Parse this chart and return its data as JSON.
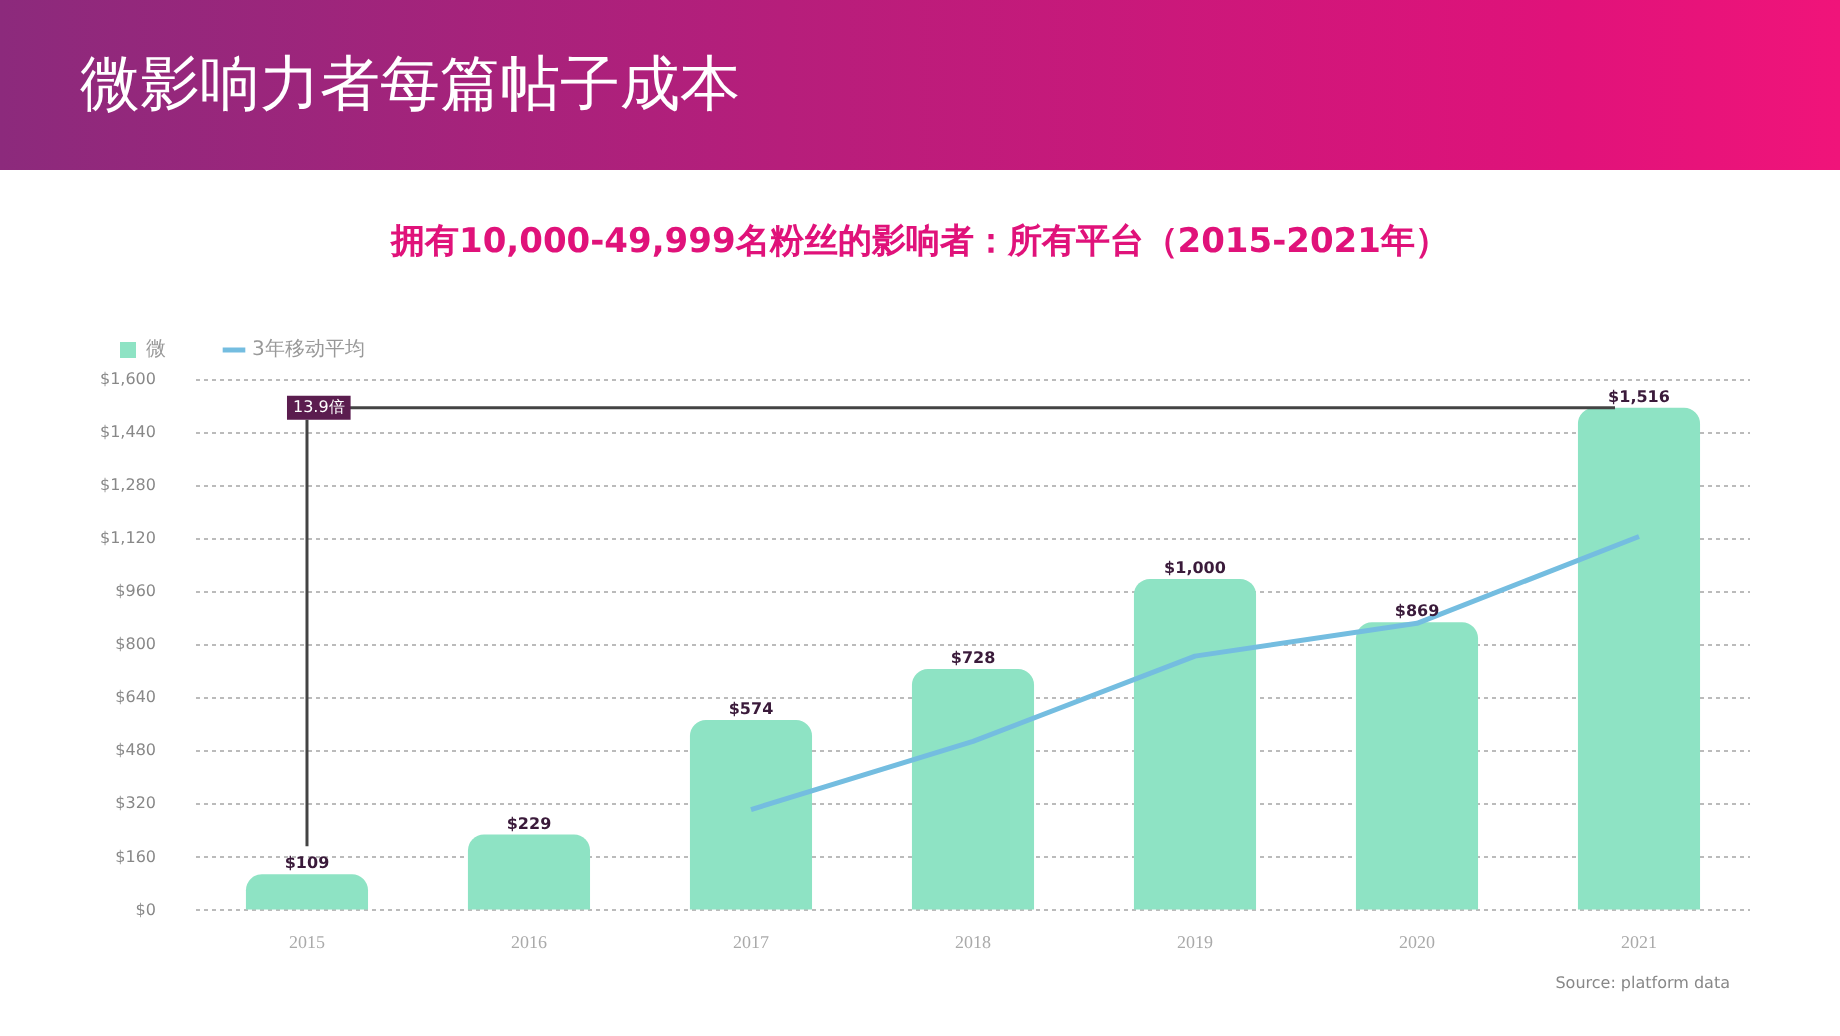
{
  "chart_data": {
    "type": "bar",
    "title": "微影响力者每篇帖子成本",
    "subtitle": "拥有10,000-49,999名粉丝的影响者：所有平台（2015-2021年）",
    "categories": [
      "2015",
      "2016",
      "2017",
      "2018",
      "2019",
      "2020",
      "2021"
    ],
    "series": [
      {
        "name": "微",
        "color": "#8ee3c4",
        "values": [
          109,
          229,
          574,
          728,
          1000,
          869,
          1516
        ],
        "value_labels": [
          "$109",
          "$229",
          "$574",
          "$728",
          "$1,000",
          "$869",
          "$1,516"
        ]
      },
      {
        "name": "3年移动平均",
        "type": "line",
        "color": "#74bde0",
        "values": [
          null,
          null,
          304,
          510,
          767,
          866,
          1128
        ]
      }
    ],
    "ylim": [
      0,
      1600
    ],
    "yticks": [
      {
        "value": 0,
        "label": "$0"
      },
      {
        "value": 160,
        "label": "$160"
      },
      {
        "value": 320,
        "label": "$320"
      },
      {
        "value": 480,
        "label": "$480"
      },
      {
        "value": 640,
        "label": "$640"
      },
      {
        "value": 800,
        "label": "$800"
      },
      {
        "value": 960,
        "label": "$960"
      },
      {
        "value": 1120,
        "label": "$1,120"
      },
      {
        "value": 1280,
        "label": "$1,280"
      },
      {
        "value": 1440,
        "label": "$1,440"
      },
      {
        "value": 1600,
        "label": "$1,600"
      }
    ],
    "grid": "y",
    "legend": "top left",
    "marker": "none",
    "line_style": "solid",
    "ref_lines": [
      {
        "axis": "y",
        "value": 1516,
        "label": "13.9倍",
        "color": "#444444"
      },
      {
        "axis": "x",
        "value": "2015",
        "color": "#444444"
      }
    ],
    "annotations": [
      "Source: platform data"
    ]
  }
}
